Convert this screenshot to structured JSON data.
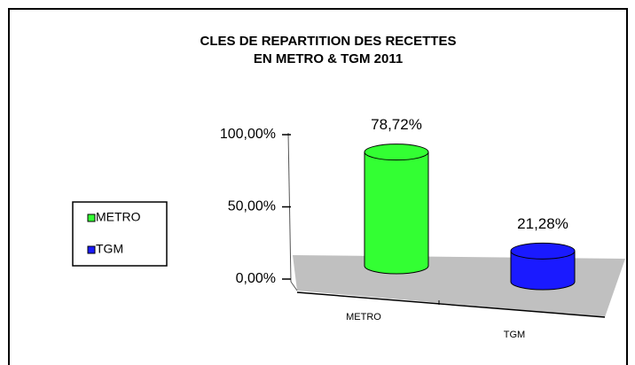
{
  "chart_data": {
    "type": "bar3d",
    "title": [
      "CLES DE REPARTITION DES RECETTES",
      "EN METRO & TGM  2011"
    ],
    "categories": [
      "METRO",
      "TGM"
    ],
    "values": [
      78.72,
      21.28
    ],
    "value_labels": [
      "78,72%",
      "21,28%"
    ],
    "colors": [
      "#33ff33",
      "#1a1aff"
    ],
    "ylim": [
      0,
      100
    ],
    "yticks": [
      {
        "value": 0,
        "label": "0,00%"
      },
      {
        "value": 50,
        "label": "50,00%"
      },
      {
        "value": 100,
        "label": "100,00%"
      }
    ],
    "legend": "left"
  }
}
